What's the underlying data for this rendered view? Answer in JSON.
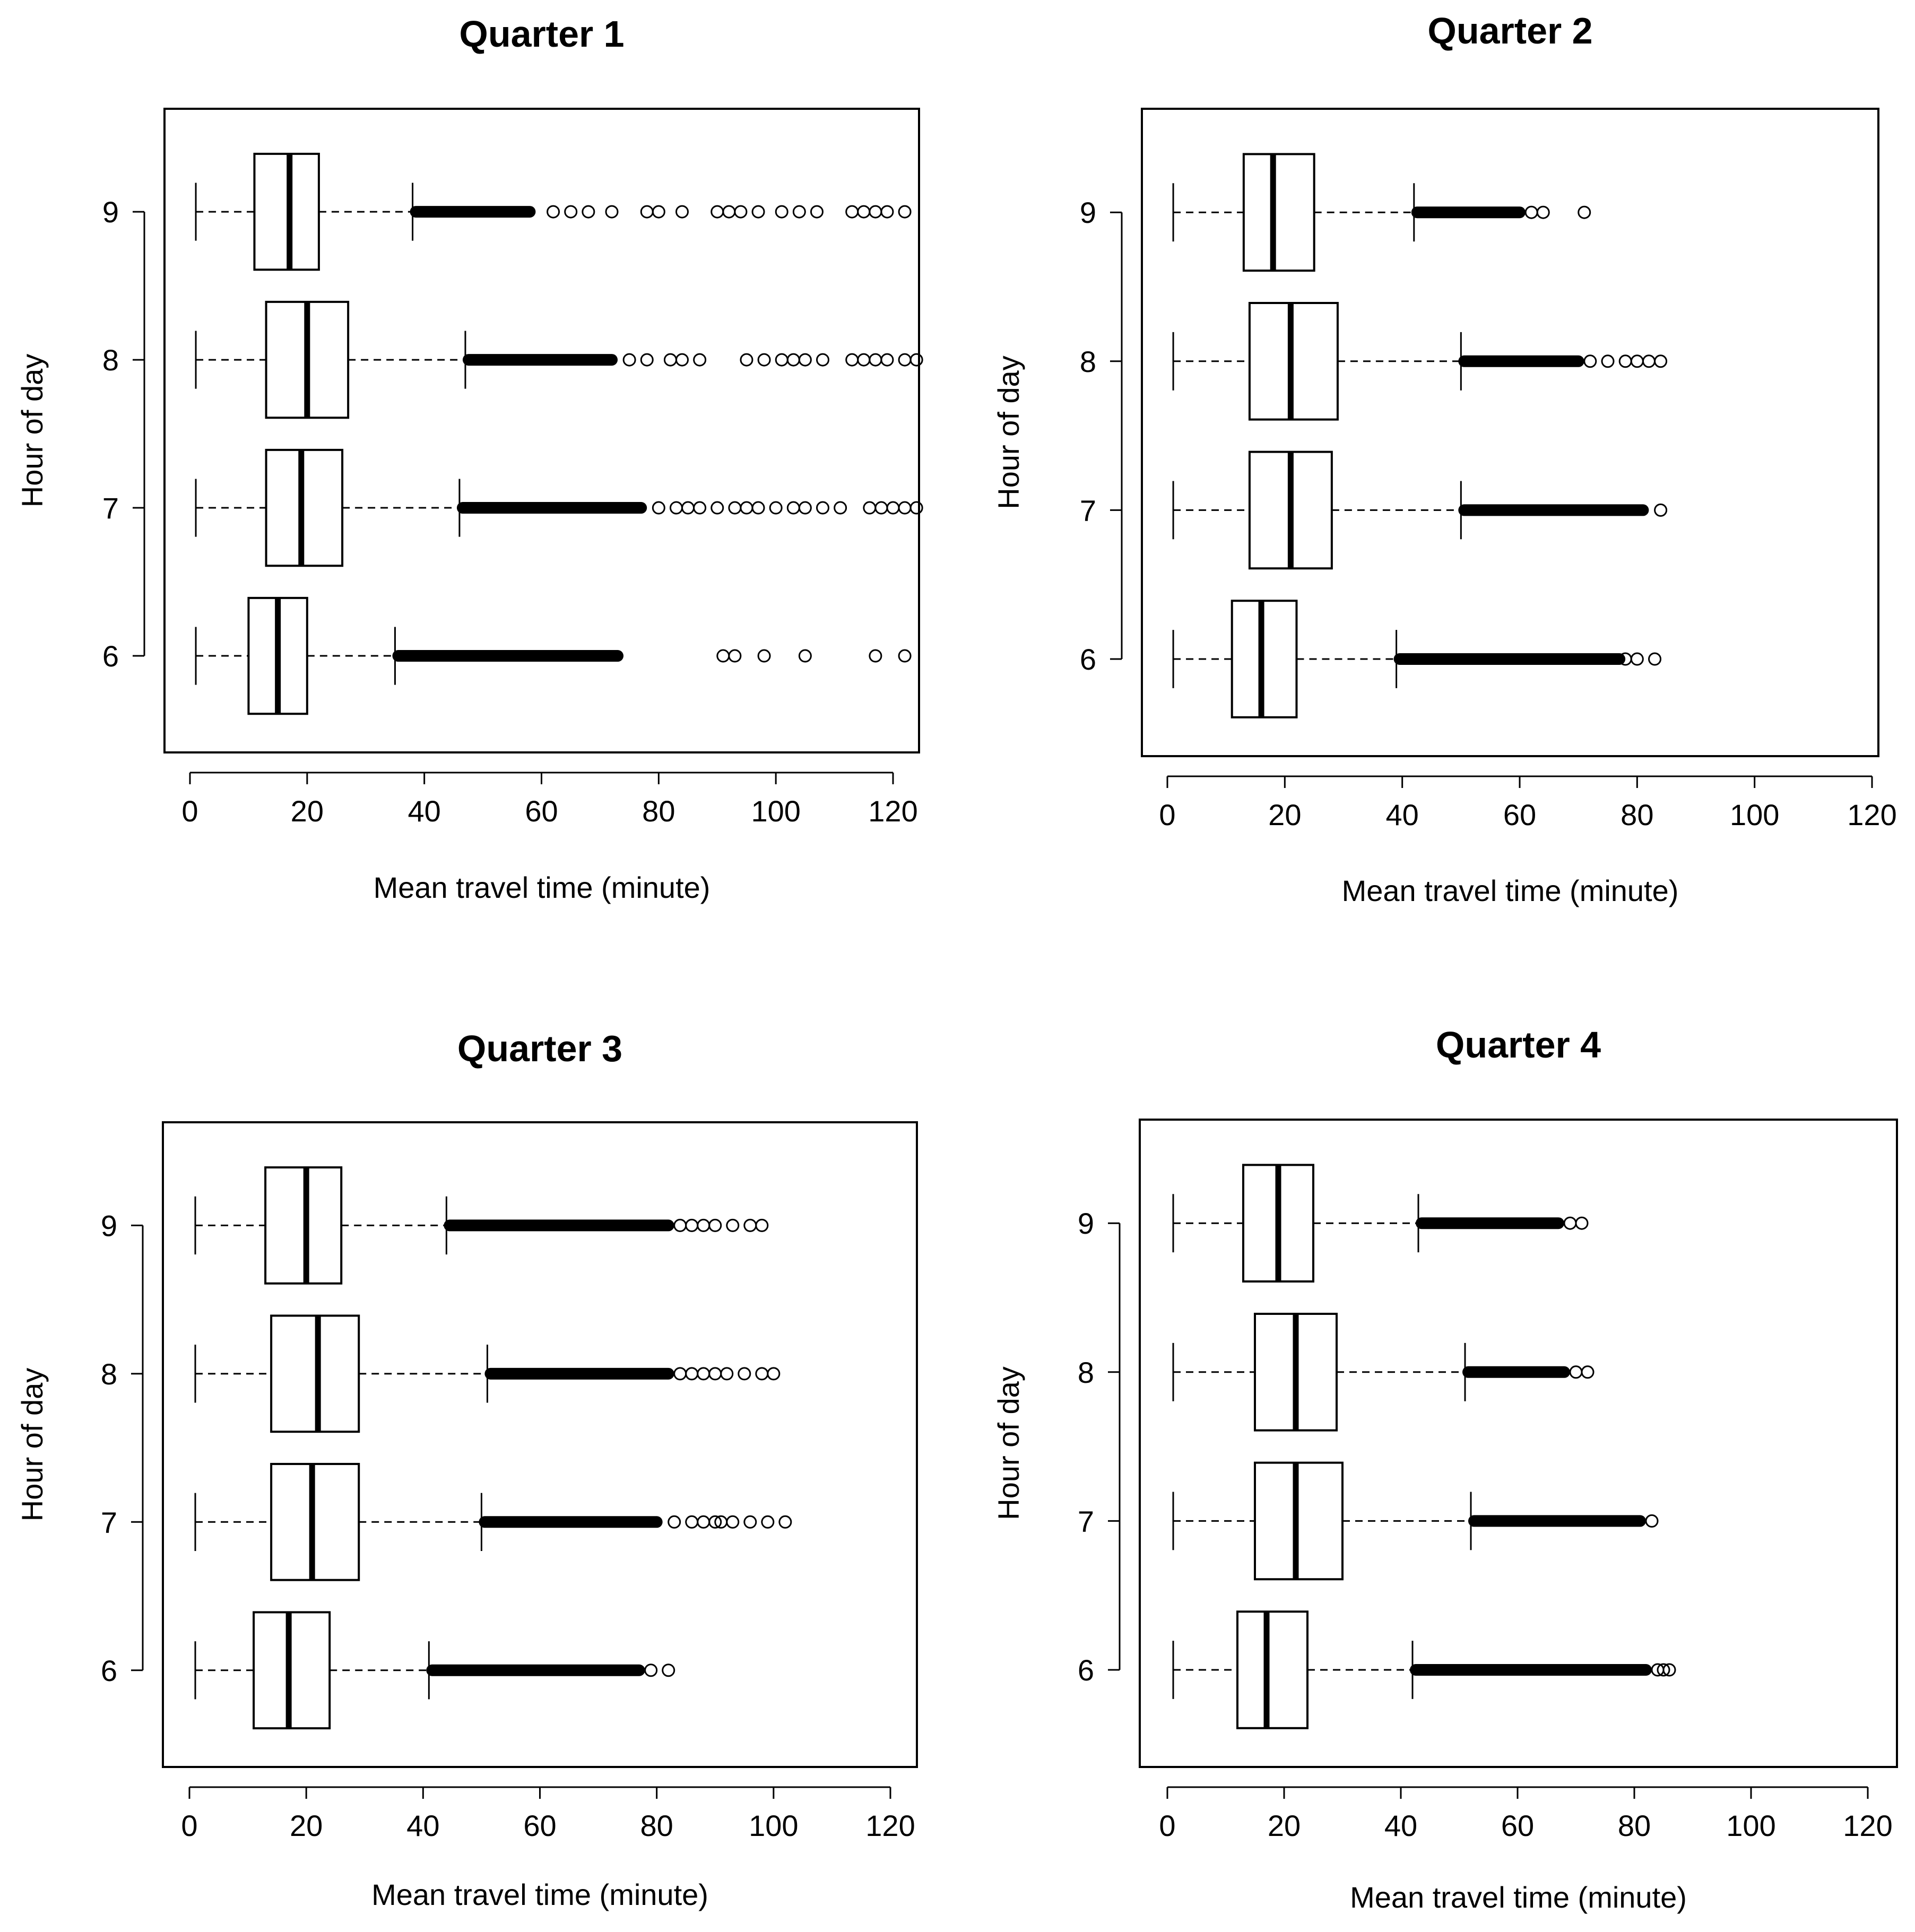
{
  "chart_data": [
    {
      "type": "boxplot",
      "orientation": "horizontal",
      "title": "Quarter 1",
      "xlabel": "Mean travel time (minute)",
      "ylabel": "Hour of day",
      "xlim": [
        -5,
        125
      ],
      "xticks": [
        0,
        20,
        40,
        60,
        80,
        100,
        120
      ],
      "categories": [
        "6",
        "7",
        "8",
        "9"
      ],
      "boxes": [
        {
          "hour": "6",
          "whisker_low": 1,
          "q1": 10,
          "median": 15,
          "q3": 20,
          "whisker_high": 35,
          "dense_outliers_to": 73,
          "outliers": [
            91,
            93,
            98,
            105,
            117,
            122
          ]
        },
        {
          "hour": "7",
          "whisker_low": 1,
          "q1": 13,
          "median": 19,
          "q3": 26,
          "whisker_high": 46,
          "dense_outliers_to": 77,
          "outliers": [
            80,
            83,
            85,
            87,
            90,
            93,
            95,
            97,
            100,
            103,
            105,
            108,
            111,
            116,
            118,
            120,
            122,
            124
          ]
        },
        {
          "hour": "8",
          "whisker_low": 1,
          "q1": 13,
          "median": 20,
          "q3": 27,
          "whisker_high": 47,
          "dense_outliers_to": 72,
          "outliers": [
            75,
            78,
            82,
            84,
            87,
            95,
            98,
            101,
            103,
            105,
            108,
            113,
            115,
            117,
            119,
            122,
            124
          ]
        },
        {
          "hour": "9",
          "whisker_low": 1,
          "q1": 11,
          "median": 17,
          "q3": 22,
          "whisker_high": 38,
          "dense_outliers_to": 58,
          "outliers": [
            62,
            65,
            68,
            72,
            78,
            80,
            84,
            90,
            92,
            94,
            97,
            101,
            104,
            107,
            113,
            115,
            117,
            119,
            122
          ]
        }
      ]
    },
    {
      "type": "boxplot",
      "orientation": "horizontal",
      "title": "Quarter 2",
      "xlabel": "Mean travel time (minute)",
      "ylabel": "Hour of day",
      "xlim": [
        -5,
        125
      ],
      "xticks": [
        0,
        20,
        40,
        60,
        80,
        100,
        120
      ],
      "categories": [
        "6",
        "7",
        "8",
        "9"
      ],
      "boxes": [
        {
          "hour": "6",
          "whisker_low": 1,
          "q1": 11,
          "median": 16,
          "q3": 22,
          "whisker_high": 39,
          "dense_outliers_to": 77,
          "outliers": [
            78,
            80,
            83
          ]
        },
        {
          "hour": "7",
          "whisker_low": 1,
          "q1": 14,
          "median": 21,
          "q3": 28,
          "whisker_high": 50,
          "dense_outliers_to": 81,
          "outliers": [
            84
          ]
        },
        {
          "hour": "8",
          "whisker_low": 1,
          "q1": 14,
          "median": 21,
          "q3": 29,
          "whisker_high": 50,
          "dense_outliers_to": 70,
          "outliers": [
            72,
            75,
            78,
            80,
            82,
            84
          ]
        },
        {
          "hour": "9",
          "whisker_low": 1,
          "q1": 13,
          "median": 18,
          "q3": 25,
          "whisker_high": 42,
          "dense_outliers_to": 60,
          "outliers": [
            62,
            64,
            71
          ]
        }
      ]
    },
    {
      "type": "boxplot",
      "orientation": "horizontal",
      "title": "Quarter 3",
      "xlabel": "Mean travel time (minute)",
      "ylabel": "Hour of day",
      "xlim": [
        -5,
        125
      ],
      "xticks": [
        0,
        20,
        40,
        60,
        80,
        100,
        120
      ],
      "categories": [
        "6",
        "7",
        "8",
        "9"
      ],
      "boxes": [
        {
          "hour": "6",
          "whisker_low": 1,
          "q1": 11,
          "median": 17,
          "q3": 24,
          "whisker_high": 41,
          "dense_outliers_to": 77,
          "outliers": [
            79,
            82
          ]
        },
        {
          "hour": "7",
          "whisker_low": 1,
          "q1": 14,
          "median": 21,
          "q3": 29,
          "whisker_high": 50,
          "dense_outliers_to": 80,
          "outliers": [
            83,
            86,
            88,
            90,
            91,
            93,
            96,
            99,
            102
          ]
        },
        {
          "hour": "8",
          "whisker_low": 1,
          "q1": 14,
          "median": 22,
          "q3": 29,
          "whisker_high": 51,
          "dense_outliers_to": 82,
          "outliers": [
            84,
            86,
            88,
            90,
            92,
            95,
            98,
            100
          ]
        },
        {
          "hour": "9",
          "whisker_low": 1,
          "q1": 13,
          "median": 20,
          "q3": 26,
          "whisker_high": 44,
          "dense_outliers_to": 82,
          "outliers": [
            84,
            86,
            88,
            90,
            93,
            96,
            98
          ]
        }
      ]
    },
    {
      "type": "boxplot",
      "orientation": "horizontal",
      "title": "Quarter 4",
      "xlabel": "Mean travel time (minute)",
      "ylabel": "Hour of day",
      "xlim": [
        -5,
        125
      ],
      "xticks": [
        0,
        20,
        40,
        60,
        80,
        100,
        120
      ],
      "categories": [
        "6",
        "7",
        "8",
        "9"
      ],
      "boxes": [
        {
          "hour": "6",
          "whisker_low": 1,
          "q1": 12,
          "median": 17,
          "q3": 24,
          "whisker_high": 42,
          "dense_outliers_to": 82,
          "outliers": [
            84,
            85,
            86
          ]
        },
        {
          "hour": "7",
          "whisker_low": 1,
          "q1": 15,
          "median": 22,
          "q3": 30,
          "whisker_high": 52,
          "dense_outliers_to": 81,
          "outliers": [
            83
          ]
        },
        {
          "hour": "8",
          "whisker_low": 1,
          "q1": 15,
          "median": 22,
          "q3": 29,
          "whisker_high": 51,
          "dense_outliers_to": 68,
          "outliers": [
            70,
            72
          ]
        },
        {
          "hour": "9",
          "whisker_low": 1,
          "q1": 13,
          "median": 19,
          "q3": 25,
          "whisker_high": 43,
          "dense_outliers_to": 67,
          "outliers": [
            69,
            71
          ]
        }
      ]
    }
  ]
}
